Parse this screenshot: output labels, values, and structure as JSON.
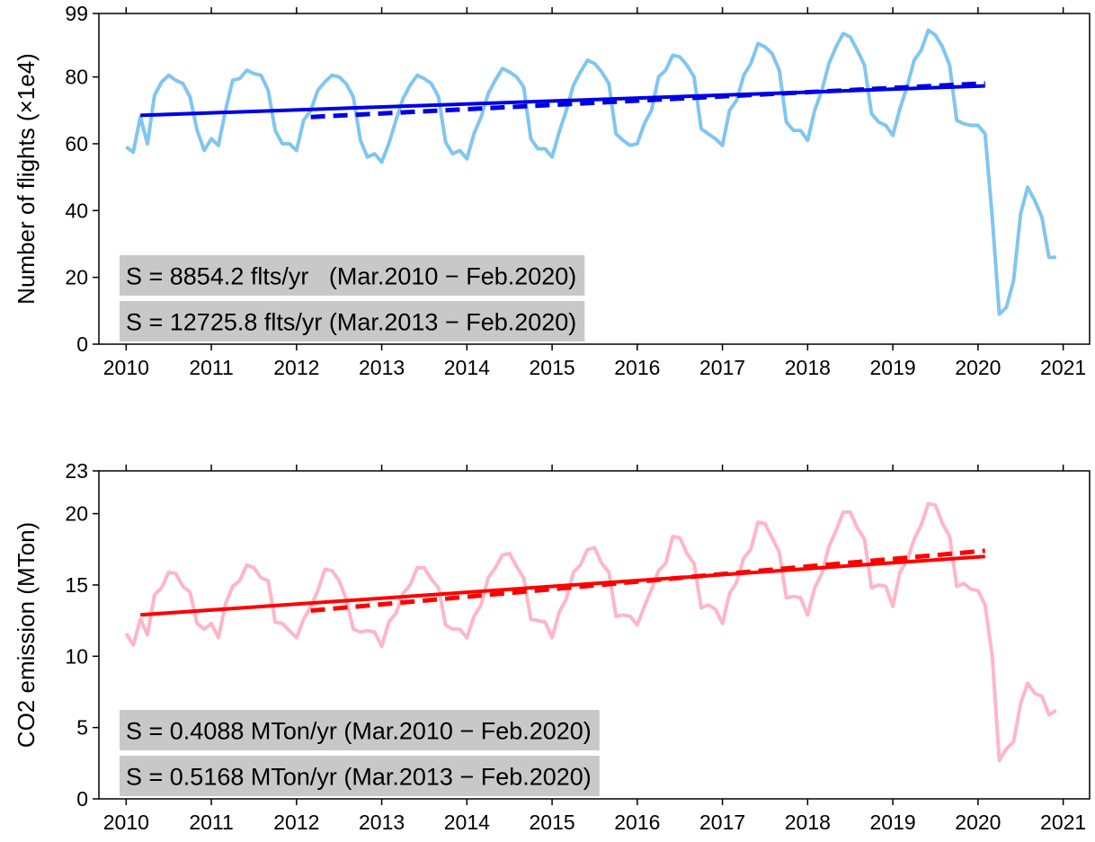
{
  "chart_data": [
    {
      "type": "line",
      "ylabel": "Number of flights (×1e4)",
      "xlim": [
        2009.68,
        2021.31
      ],
      "xticks": [
        2010,
        2011,
        2012,
        2013,
        2014,
        2015,
        2016,
        2017,
        2018,
        2019,
        2020,
        2021
      ],
      "ylim": [
        0,
        99
      ],
      "yticks": [
        0,
        20,
        40,
        60,
        80,
        99
      ],
      "annotations": [
        "S = 8854.2 flts/yr   (Mar.2010 − Feb.2020)",
        "S = 12725.8 flts/yr (Mar.2013 − Feb.2020)"
      ],
      "series": [
        {
          "color": "#80c6f0",
          "style": "solid",
          "x": [
            2010,
            2010.083,
            2010.167,
            2010.25,
            2010.333,
            2010.417,
            2010.5,
            2010.583,
            2010.667,
            2010.75,
            2010.833,
            2010.917,
            2011,
            2011.083,
            2011.167,
            2011.25,
            2011.333,
            2011.417,
            2011.5,
            2011.583,
            2011.667,
            2011.75,
            2011.833,
            2011.917,
            2012,
            2012.083,
            2012.167,
            2012.25,
            2012.333,
            2012.417,
            2012.5,
            2012.583,
            2012.667,
            2012.75,
            2012.833,
            2012.917,
            2013,
            2013.083,
            2013.167,
            2013.25,
            2013.333,
            2013.417,
            2013.5,
            2013.583,
            2013.667,
            2013.75,
            2013.833,
            2013.917,
            2014,
            2014.083,
            2014.167,
            2014.25,
            2014.333,
            2014.417,
            2014.5,
            2014.583,
            2014.667,
            2014.75,
            2014.833,
            2014.917,
            2015,
            2015.083,
            2015.167,
            2015.25,
            2015.333,
            2015.417,
            2015.5,
            2015.583,
            2015.667,
            2015.75,
            2015.833,
            2015.917,
            2016,
            2016.083,
            2016.167,
            2016.25,
            2016.333,
            2016.417,
            2016.5,
            2016.583,
            2016.667,
            2016.75,
            2016.833,
            2016.917,
            2017,
            2017.083,
            2017.167,
            2017.25,
            2017.333,
            2017.417,
            2017.5,
            2017.583,
            2017.667,
            2017.75,
            2017.833,
            2017.917,
            2018,
            2018.083,
            2018.167,
            2018.25,
            2018.333,
            2018.417,
            2018.5,
            2018.583,
            2018.667,
            2018.75,
            2018.833,
            2018.917,
            2019,
            2019.083,
            2019.167,
            2019.25,
            2019.333,
            2019.417,
            2019.5,
            2019.583,
            2019.667,
            2019.75,
            2019.833,
            2019.917,
            2020,
            2020.083,
            2020.167,
            2020.25,
            2020.333,
            2020.417,
            2020.5,
            2020.583,
            2020.667,
            2020.75,
            2020.833,
            2020.917
          ],
          "values": [
            59,
            57.5,
            68,
            60,
            74.5,
            78.5,
            80.5,
            79,
            78,
            74,
            64,
            58,
            61.5,
            59.5,
            70,
            79,
            79.5,
            82,
            81,
            80.5,
            76,
            64,
            60,
            60,
            58,
            67,
            70,
            76,
            78.5,
            80.5,
            80,
            78,
            74,
            61,
            56,
            57,
            54.5,
            60,
            67,
            73.5,
            77.5,
            80.5,
            79.5,
            78,
            74,
            60.5,
            57,
            58,
            55.5,
            63,
            68,
            75,
            79,
            82.5,
            81.5,
            80,
            77,
            61.5,
            58.5,
            58.5,
            56,
            63.5,
            70,
            77.5,
            81.5,
            85,
            84,
            81.5,
            78,
            63,
            61,
            59.5,
            60,
            66,
            70,
            80,
            82,
            86.5,
            86,
            83.5,
            80,
            64.5,
            63,
            61.5,
            59.5,
            70,
            73,
            80.5,
            84,
            90,
            89,
            87,
            82,
            66.5,
            64,
            64,
            61,
            70,
            76,
            84,
            89,
            93,
            92,
            88,
            83.5,
            69,
            66.5,
            65.5,
            62.5,
            70.5,
            77,
            85,
            88,
            94,
            92.5,
            89,
            83.5,
            67,
            66,
            65.5,
            65.5,
            63,
            38,
            9,
            11,
            19,
            39,
            47,
            43,
            38,
            26,
            26
          ]
        },
        {
          "color": "#0000e6",
          "style": "solid",
          "x": [
            2010.167,
            2020.083
          ],
          "values": [
            68.5,
            77.3
          ]
        },
        {
          "color": "#0000e6",
          "style": "dashed",
          "x": [
            2012.167,
            2020.083
          ],
          "values": [
            68.0,
            78.1
          ]
        }
      ]
    },
    {
      "type": "line",
      "ylabel": "CO2 emission (MTon)",
      "xlim": [
        2009.68,
        2021.31
      ],
      "xticks": [
        2010,
        2011,
        2012,
        2013,
        2014,
        2015,
        2016,
        2017,
        2018,
        2019,
        2020,
        2021
      ],
      "ylim": [
        0,
        23
      ],
      "yticks": [
        0,
        5,
        10,
        15,
        20,
        23
      ],
      "annotations": [
        "S = 0.4088 MTon/yr (Mar.2010 − Feb.2020)",
        "S = 0.5168 MTon/yr (Mar.2013 − Feb.2020)"
      ],
      "series": [
        {
          "color": "#ffb6c6",
          "style": "solid",
          "x": [
            2010,
            2010.083,
            2010.167,
            2010.25,
            2010.333,
            2010.417,
            2010.5,
            2010.583,
            2010.667,
            2010.75,
            2010.833,
            2010.917,
            2011,
            2011.083,
            2011.167,
            2011.25,
            2011.333,
            2011.417,
            2011.5,
            2011.583,
            2011.667,
            2011.75,
            2011.833,
            2011.917,
            2012,
            2012.083,
            2012.167,
            2012.25,
            2012.333,
            2012.417,
            2012.5,
            2012.583,
            2012.667,
            2012.75,
            2012.833,
            2012.917,
            2013,
            2013.083,
            2013.167,
            2013.25,
            2013.333,
            2013.417,
            2013.5,
            2013.583,
            2013.667,
            2013.75,
            2013.833,
            2013.917,
            2014,
            2014.083,
            2014.167,
            2014.25,
            2014.333,
            2014.417,
            2014.5,
            2014.583,
            2014.667,
            2014.75,
            2014.833,
            2014.917,
            2015,
            2015.083,
            2015.167,
            2015.25,
            2015.333,
            2015.417,
            2015.5,
            2015.583,
            2015.667,
            2015.75,
            2015.833,
            2015.917,
            2016,
            2016.083,
            2016.167,
            2016.25,
            2016.333,
            2016.417,
            2016.5,
            2016.583,
            2016.667,
            2016.75,
            2016.833,
            2016.917,
            2017,
            2017.083,
            2017.167,
            2017.25,
            2017.333,
            2017.417,
            2017.5,
            2017.583,
            2017.667,
            2017.75,
            2017.833,
            2017.917,
            2018,
            2018.083,
            2018.167,
            2018.25,
            2018.333,
            2018.417,
            2018.5,
            2018.583,
            2018.667,
            2018.75,
            2018.833,
            2018.917,
            2019,
            2019.083,
            2019.167,
            2019.25,
            2019.333,
            2019.417,
            2019.5,
            2019.583,
            2019.667,
            2019.75,
            2019.833,
            2019.917,
            2020,
            2020.083,
            2020.167,
            2020.25,
            2020.333,
            2020.417,
            2020.5,
            2020.583,
            2020.667,
            2020.75,
            2020.833,
            2020.917
          ],
          "values": [
            11.6,
            10.8,
            12.6,
            11.5,
            14.3,
            14.8,
            15.9,
            15.8,
            14.9,
            14.5,
            12.3,
            11.9,
            12.3,
            11.3,
            13.7,
            14.9,
            15.3,
            16.4,
            16.2,
            15.5,
            15.3,
            12.4,
            12.3,
            11.8,
            11.3,
            12.6,
            13.5,
            14.6,
            16.1,
            16.0,
            15.3,
            14.0,
            11.9,
            11.7,
            11.8,
            11.7,
            10.7,
            12.4,
            13.0,
            14.4,
            15.0,
            16.2,
            16.2,
            15.4,
            14.8,
            12.2,
            11.9,
            11.9,
            11.3,
            12.8,
            13.6,
            15.5,
            16.2,
            17.1,
            17.2,
            16.3,
            15.5,
            12.6,
            12.5,
            12.4,
            11.3,
            13.1,
            14.0,
            15.9,
            16.4,
            17.5,
            17.6,
            16.5,
            15.9,
            12.8,
            12.9,
            12.8,
            12.2,
            13.5,
            14.7,
            16.0,
            16.5,
            18.4,
            18.3,
            17.2,
            16.5,
            13.4,
            13.6,
            13.3,
            12.3,
            14.4,
            15.2,
            16.9,
            17.5,
            19.4,
            19.3,
            18.3,
            17.3,
            14.1,
            14.2,
            14.1,
            12.9,
            14.8,
            15.8,
            17.7,
            18.8,
            20.1,
            20.1,
            19.0,
            18.2,
            14.8,
            15.0,
            14.9,
            13.5,
            15.9,
            16.7,
            18.2,
            19.2,
            20.7,
            20.6,
            19.3,
            18.4,
            14.9,
            15.1,
            14.7,
            14.6,
            13.6,
            10.0,
            2.7,
            3.5,
            4.0,
            6.7,
            8.1,
            7.4,
            7.2,
            5.9,
            6.2
          ]
        },
        {
          "color": "#ff0000",
          "style": "solid",
          "x": [
            2010.167,
            2020.083
          ],
          "values": [
            12.9,
            17.0
          ]
        },
        {
          "color": "#ff0000",
          "style": "dashed",
          "x": [
            2012.167,
            2020.083
          ],
          "values": [
            13.2,
            17.4
          ]
        }
      ]
    }
  ]
}
